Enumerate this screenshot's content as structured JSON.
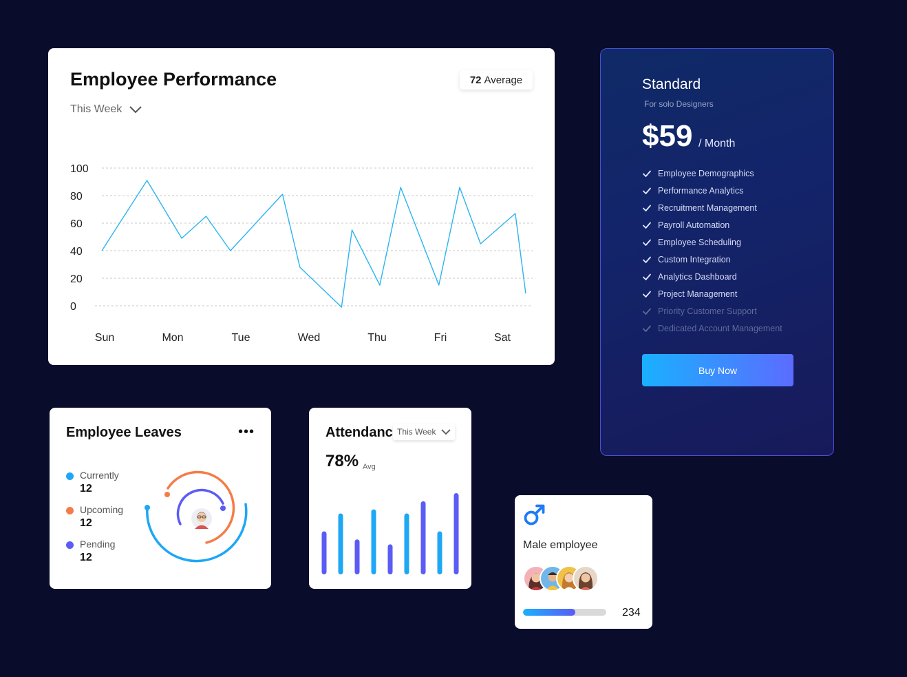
{
  "performance": {
    "title": "Employee Performance",
    "average_value": "72",
    "average_label": "Average",
    "period": "This Week",
    "chart_data": {
      "type": "line",
      "y_ticks": [
        "100",
        "80",
        "60",
        "40",
        "20",
        "0"
      ],
      "x_labels": [
        "Sun",
        "Mon",
        "Tue",
        "Wed",
        "Thu",
        "Fri",
        "Sat"
      ],
      "ylim": [
        0,
        100
      ],
      "x_range": [
        0,
        6.2
      ],
      "color": "#2bb4f0",
      "x": [
        0,
        0.65,
        1.15,
        1.5,
        1.85,
        2.6,
        2.85,
        3.45,
        3.6,
        4.0,
        4.3,
        4.85,
        5.15,
        5.45,
        5.95,
        6.1
      ],
      "values": [
        40,
        91,
        49,
        65,
        40,
        81,
        28,
        -1,
        55,
        15,
        86,
        15,
        86,
        45,
        67,
        9
      ]
    }
  },
  "pricing": {
    "plan": "Standard",
    "subtitle": "For solo Designers",
    "price": "$59",
    "period": "/ Month",
    "features": [
      {
        "label": "Employee Demographics",
        "enabled": true
      },
      {
        "label": "Performance Analytics",
        "enabled": true
      },
      {
        "label": "Recruitment Management",
        "enabled": true
      },
      {
        "label": "Payroll Automation",
        "enabled": true
      },
      {
        "label": "Employee Scheduling",
        "enabled": true
      },
      {
        "label": "Custom Integration",
        "enabled": true
      },
      {
        "label": "Analytics Dashboard",
        "enabled": true
      },
      {
        "label": "Project Management",
        "enabled": true
      },
      {
        "label": "Priority Customer Support",
        "enabled": false
      },
      {
        "label": "Dedicated Account Management",
        "enabled": false
      }
    ],
    "button": "Buy Now"
  },
  "leaves": {
    "title": "Employee Leaves",
    "more_label": "•••",
    "items": [
      {
        "label": "Currently",
        "value": "12",
        "color": "#1ea7f5"
      },
      {
        "label": "Upcoming",
        "value": "12",
        "color": "#f47c48"
      },
      {
        "label": "Pending",
        "value": "12",
        "color": "#5b5bf5"
      }
    ]
  },
  "attendance": {
    "title": "Attendance",
    "period": "This Week",
    "percent": "78%",
    "avg_label": "Avg",
    "chart_data": {
      "type": "bar",
      "ylim": [
        0,
        100
      ],
      "values": [
        53,
        75,
        43,
        80,
        37,
        75,
        90,
        53,
        100
      ],
      "colors": [
        "#5b5bf5",
        "#1ea7f5",
        "#5b5bf5",
        "#1ea7f5",
        "#5b5bf5",
        "#1ea7f5",
        "#5b5bf5",
        "#1ea7f5",
        "#5b5bf5"
      ]
    }
  },
  "male": {
    "label": "Male employee",
    "count": "234",
    "progress": 0.63,
    "avatars": [
      "avatar-1",
      "avatar-2",
      "avatar-3",
      "avatar-4"
    ]
  }
}
